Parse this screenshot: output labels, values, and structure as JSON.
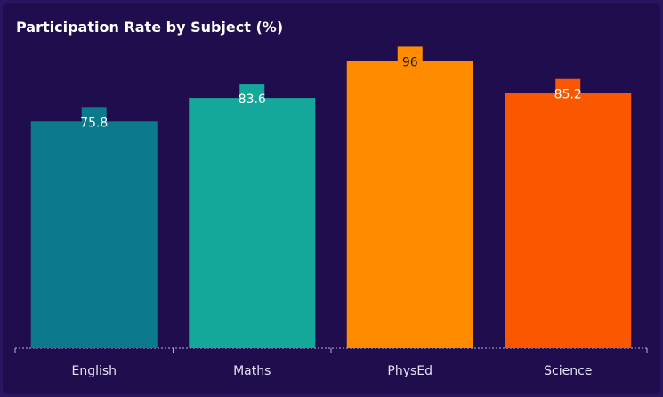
{
  "chart_data": {
    "type": "bar",
    "title": "Participation Rate by Subject (%)",
    "categories": [
      "English",
      "Maths",
      "PhysEd",
      "Science"
    ],
    "values": [
      75.8,
      83.6,
      96,
      85.2
    ],
    "colors": [
      "#0b7a8a",
      "#14a89a",
      "#ff8c00",
      "#fb5700"
    ],
    "label_colors": [
      "#ffffff",
      "#ffffff",
      "#1a1a1a",
      "#ffffff"
    ],
    "ylim": [
      0,
      100
    ],
    "xlabel": "",
    "ylabel": "",
    "grid": false,
    "legend": "none"
  }
}
